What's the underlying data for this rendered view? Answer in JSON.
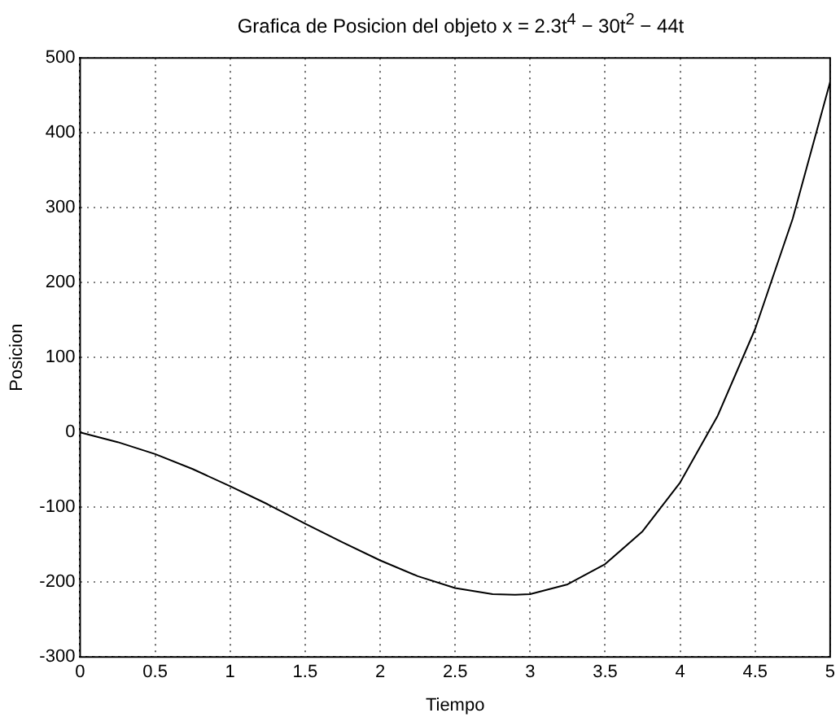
{
  "chart_data": {
    "type": "line",
    "title": "Grafica de Posicion del objeto  x = 2.3t$^{4}$ − 30t$^{2}$ − 44t",
    "xlabel": "Tiempo",
    "ylabel": "Posicion",
    "x": [
      0,
      0.25,
      0.5,
      0.75,
      1,
      1.25,
      1.5,
      1.75,
      2,
      2.25,
      2.5,
      2.75,
      2.9,
      3,
      3.25,
      3.5,
      3.75,
      4,
      4.25,
      4.5,
      4.75,
      5
    ],
    "series": [
      {
        "color": "#000000",
        "values": [
          0,
          -13,
          -29,
          -49,
          -72,
          -96,
          -122,
          -147,
          -171,
          -192,
          -208,
          -216,
          -217,
          -216,
          -203,
          -176,
          -132,
          -67,
          22,
          138,
          285,
          468
        ]
      }
    ],
    "xlim": [
      0,
      5
    ],
    "xticks": [
      0,
      0.5,
      1,
      1.5,
      2,
      2.5,
      3,
      3.5,
      4,
      4.5,
      5
    ],
    "ylim": [
      -300,
      500
    ],
    "yticks": [
      -300,
      -200,
      -100,
      0,
      100,
      200,
      300,
      400,
      500
    ],
    "grid": true,
    "legend": false,
    "marker": "none",
    "line_style": "solid"
  }
}
